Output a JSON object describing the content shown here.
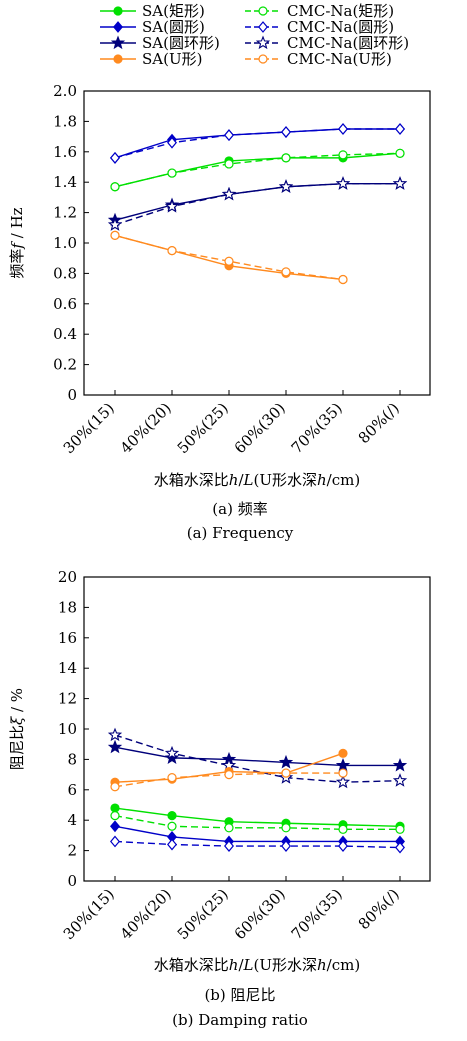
{
  "legend": [
    {
      "label": "SA(矩形)",
      "color": "#00e000",
      "marker": "circle",
      "filled": true,
      "dashed": false
    },
    {
      "label": "CMC-Na(矩形)",
      "color": "#00e000",
      "marker": "circle",
      "filled": false,
      "dashed": true
    },
    {
      "label": "SA(圆形)",
      "color": "#0000c8",
      "marker": "diamond",
      "filled": true,
      "dashed": false
    },
    {
      "label": "CMC-Na(圆形)",
      "color": "#0000c8",
      "marker": "diamond",
      "filled": false,
      "dashed": true
    },
    {
      "label": "SA(圆环形)",
      "color": "#00007a",
      "marker": "star",
      "filled": true,
      "dashed": false
    },
    {
      "label": "CMC-Na(圆环形)",
      "color": "#00007a",
      "marker": "star",
      "filled": false,
      "dashed": true
    },
    {
      "label": "SA(U形)",
      "color": "#ff8a1f",
      "marker": "circle",
      "filled": true,
      "dashed": false
    },
    {
      "label": "CMC-Na(U形)",
      "color": "#ff8a1f",
      "marker": "circle",
      "filled": false,
      "dashed": true
    }
  ],
  "chart_data": [
    {
      "type": "line",
      "categories": [
        "30%(15)",
        "40%(20)",
        "50%(25)",
        "60%(30)",
        "70%(35)",
        "80%(/)"
      ],
      "ylim": [
        0,
        2.0
      ],
      "yticks": [
        "0",
        "0.2",
        "0.4",
        "0.6",
        "0.8",
        "1.0",
        "1.2",
        "1.4",
        "1.6",
        "1.8",
        "2.0"
      ],
      "ylabel_pre": "频率",
      "ylabel_var": "f",
      "ylabel_post": " / Hz",
      "xlabel_pre": "水箱水深比",
      "xlabel_var1": "h",
      "xlabel_mid": "/",
      "xlabel_var2": "L",
      "xlabel_mid2": "(U形水深",
      "xlabel_var3": "h",
      "xlabel_post": "/cm)",
      "caption_zh": "(a) 频率",
      "caption_en": "(a) Frequency",
      "grid": false,
      "series": [
        {
          "name": "SA(矩形)",
          "values": [
            1.37,
            1.46,
            1.54,
            1.56,
            1.56,
            1.59
          ]
        },
        {
          "name": "CMC-Na(矩形)",
          "values": [
            1.37,
            1.46,
            1.52,
            1.56,
            1.58,
            1.59
          ]
        },
        {
          "name": "SA(圆形)",
          "values": [
            1.56,
            1.68,
            1.71,
            1.73,
            1.75,
            1.75
          ]
        },
        {
          "name": "CMC-Na(圆形)",
          "values": [
            1.56,
            1.66,
            1.71,
            1.73,
            1.75,
            1.75
          ]
        },
        {
          "name": "SA(圆环形)",
          "values": [
            1.15,
            1.25,
            1.32,
            1.37,
            1.39,
            1.39
          ]
        },
        {
          "name": "CMC-Na(圆环形)",
          "values": [
            1.12,
            1.24,
            1.32,
            1.37,
            1.39,
            1.39
          ]
        },
        {
          "name": "SA(U形)",
          "values": [
            1.05,
            0.95,
            0.85,
            0.8,
            0.76,
            null
          ]
        },
        {
          "name": "CMC-Na(U形)",
          "values": [
            1.05,
            0.95,
            0.88,
            0.81,
            0.76,
            null
          ]
        }
      ]
    },
    {
      "type": "line",
      "categories": [
        "30%(15)",
        "40%(20)",
        "50%(25)",
        "60%(30)",
        "70%(35)",
        "80%(/)"
      ],
      "ylim": [
        0,
        20
      ],
      "yticks": [
        "0",
        "2",
        "4",
        "6",
        "8",
        "10",
        "12",
        "14",
        "16",
        "18",
        "20"
      ],
      "ylabel_pre": "阻尼比",
      "ylabel_var": "ξ",
      "ylabel_post": " / %",
      "xlabel_pre": "水箱水深比",
      "xlabel_var1": "h",
      "xlabel_mid": "/",
      "xlabel_var2": "L",
      "xlabel_mid2": "(U形水深",
      "xlabel_var3": "h",
      "xlabel_post": "/cm)",
      "caption_zh": "(b) 阻尼比",
      "caption_en": "(b) Damping ratio",
      "grid": false,
      "series": [
        {
          "name": "SA(矩形)",
          "values": [
            4.8,
            4.3,
            3.9,
            3.8,
            3.7,
            3.6
          ]
        },
        {
          "name": "CMC-Na(矩形)",
          "values": [
            4.3,
            3.6,
            3.5,
            3.5,
            3.4,
            3.4
          ]
        },
        {
          "name": "SA(圆形)",
          "values": [
            3.6,
            2.9,
            2.6,
            2.6,
            2.6,
            2.6
          ]
        },
        {
          "name": "CMC-Na(圆形)",
          "values": [
            2.6,
            2.4,
            2.3,
            2.3,
            2.3,
            2.2
          ]
        },
        {
          "name": "SA(圆环形)",
          "values": [
            8.8,
            8.1,
            8.0,
            7.8,
            7.6,
            7.6
          ]
        },
        {
          "name": "CMC-Na(圆环形)",
          "values": [
            9.6,
            8.4,
            7.6,
            6.8,
            6.5,
            6.6
          ]
        },
        {
          "name": "SA(U形)",
          "values": [
            6.5,
            6.7,
            7.2,
            7.1,
            8.4,
            null
          ]
        },
        {
          "name": "CMC-Na(U形)",
          "values": [
            6.2,
            6.8,
            7.0,
            7.1,
            7.1,
            null
          ]
        }
      ]
    }
  ]
}
